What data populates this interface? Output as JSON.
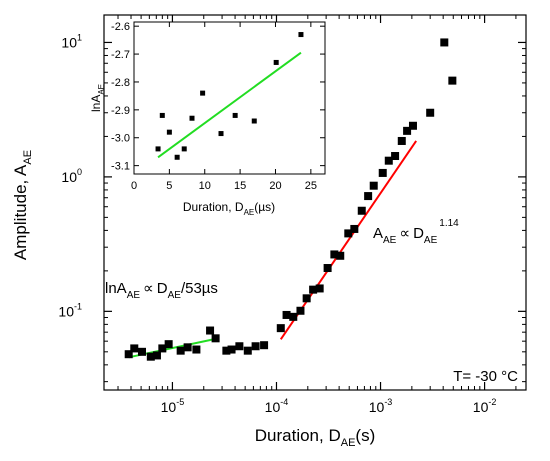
{
  "chart_data": [
    {
      "type": "scatter",
      "x_scale": "log",
      "y_scale": "log",
      "xlim": [
        2.2e-06,
        0.025
      ],
      "ylim": [
        0.026,
        16
      ],
      "xlabel": {
        "main": "Duration, D",
        "sub": "AE",
        "unit": "(s)"
      },
      "ylabel": {
        "main": "Amplitude, A",
        "sub": "AE"
      },
      "x_ticks": [
        {
          "value": 1e-05,
          "base": "10",
          "exp": "-5"
        },
        {
          "value": 0.0001,
          "base": "10",
          "exp": "-4"
        },
        {
          "value": 0.001,
          "base": "10",
          "exp": "-3"
        },
        {
          "value": 0.01,
          "base": "10",
          "exp": "-2"
        }
      ],
      "y_ticks": [
        {
          "value": 0.1,
          "base": "10",
          "exp": "-1"
        },
        {
          "value": 1,
          "base": "10",
          "exp": "0"
        },
        {
          "value": 10,
          "base": "10",
          "exp": "1"
        }
      ],
      "points": [
        {
          "x": 3.8e-06,
          "y": 0.048
        },
        {
          "x": 4.3e-06,
          "y": 0.053
        },
        {
          "x": 5.1e-06,
          "y": 0.05
        },
        {
          "x": 6.2e-06,
          "y": 0.046
        },
        {
          "x": 7.1e-06,
          "y": 0.047
        },
        {
          "x": 8e-06,
          "y": 0.053
        },
        {
          "x": 9.2e-06,
          "y": 0.057
        },
        {
          "x": 1.2e-05,
          "y": 0.051
        },
        {
          "x": 1.4e-05,
          "y": 0.054
        },
        {
          "x": 1.7e-05,
          "y": 0.052
        },
        {
          "x": 2.3e-05,
          "y": 0.072
        },
        {
          "x": 2.6e-05,
          "y": 0.063
        },
        {
          "x": 3.3e-05,
          "y": 0.051
        },
        {
          "x": 3.7e-05,
          "y": 0.052
        },
        {
          "x": 4.4e-05,
          "y": 0.055
        },
        {
          "x": 5.3e-05,
          "y": 0.051
        },
        {
          "x": 6.3e-05,
          "y": 0.055
        },
        {
          "x": 7.6e-05,
          "y": 0.056
        },
        {
          "x": 0.00011,
          "y": 0.075
        },
        {
          "x": 0.000125,
          "y": 0.094
        },
        {
          "x": 0.000145,
          "y": 0.091
        },
        {
          "x": 0.00017,
          "y": 0.101
        },
        {
          "x": 0.000195,
          "y": 0.125
        },
        {
          "x": 0.000225,
          "y": 0.145
        },
        {
          "x": 0.00026,
          "y": 0.148
        },
        {
          "x": 0.00031,
          "y": 0.21
        },
        {
          "x": 0.00036,
          "y": 0.265
        },
        {
          "x": 0.00041,
          "y": 0.259
        },
        {
          "x": 0.00049,
          "y": 0.38
        },
        {
          "x": 0.00056,
          "y": 0.41
        },
        {
          "x": 0.00066,
          "y": 0.56
        },
        {
          "x": 0.00076,
          "y": 0.72
        },
        {
          "x": 0.00086,
          "y": 0.86
        },
        {
          "x": 0.00105,
          "y": 1.07
        },
        {
          "x": 0.0012,
          "y": 1.32
        },
        {
          "x": 0.00138,
          "y": 1.43
        },
        {
          "x": 0.0016,
          "y": 1.85
        },
        {
          "x": 0.0018,
          "y": 2.2
        },
        {
          "x": 0.00205,
          "y": 2.4
        },
        {
          "x": 0.003,
          "y": 3.0
        },
        {
          "x": 0.0041,
          "y": 10.0
        },
        {
          "x": 0.0049,
          "y": 5.2
        }
      ],
      "fits": [
        {
          "color": "#22dd22",
          "x": [
            3.8e-06,
            2.5e-05
          ],
          "y": [
            0.0455,
            0.062
          ]
        },
        {
          "color": "#ff0000",
          "x": [
            0.00011,
            0.0022
          ],
          "y": [
            0.062,
            1.85
          ]
        }
      ],
      "annotations": {
        "lin_fit": {
          "a": "lnA",
          "a_sub": "AE",
          "prop": "∝",
          "d": "D",
          "d_sub": "AE",
          "rest": "/53µs"
        },
        "power_fit": {
          "a": "A",
          "a_sub": "AE",
          "prop": "∝",
          "d": "D",
          "d_sub": "AE",
          "exp": "1.14"
        },
        "temperature": "T= -30 °C"
      }
    },
    {
      "type": "scatter",
      "xlim": [
        0,
        27
      ],
      "ylim": [
        -3.13,
        -2.585
      ],
      "xlabel": {
        "main": "Duration, D",
        "sub": "AE",
        "unit": "(µs)"
      },
      "ylabel": {
        "main": "lnA",
        "sub": "AE"
      },
      "x_ticks": [
        0,
        5,
        10,
        15,
        20,
        25
      ],
      "y_ticks": [
        "-3.1",
        "-3.0",
        "-2.9",
        "-2.8",
        "-2.7",
        "-2.6"
      ],
      "points": [
        {
          "x": 3.4,
          "y": -3.04
        },
        {
          "x": 4.0,
          "y": -2.92
        },
        {
          "x": 5.0,
          "y": -2.98
        },
        {
          "x": 6.1,
          "y": -3.07
        },
        {
          "x": 7.1,
          "y": -3.04
        },
        {
          "x": 8.2,
          "y": -2.93
        },
        {
          "x": 9.7,
          "y": -2.84
        },
        {
          "x": 12.3,
          "y": -2.985
        },
        {
          "x": 14.3,
          "y": -2.92
        },
        {
          "x": 17.0,
          "y": -2.94
        },
        {
          "x": 20.1,
          "y": -2.73
        },
        {
          "x": 23.6,
          "y": -2.63
        }
      ],
      "fit": {
        "color": "#22dd22",
        "x": [
          3.4,
          23.6
        ],
        "y": [
          -3.07,
          -2.695
        ]
      }
    }
  ]
}
